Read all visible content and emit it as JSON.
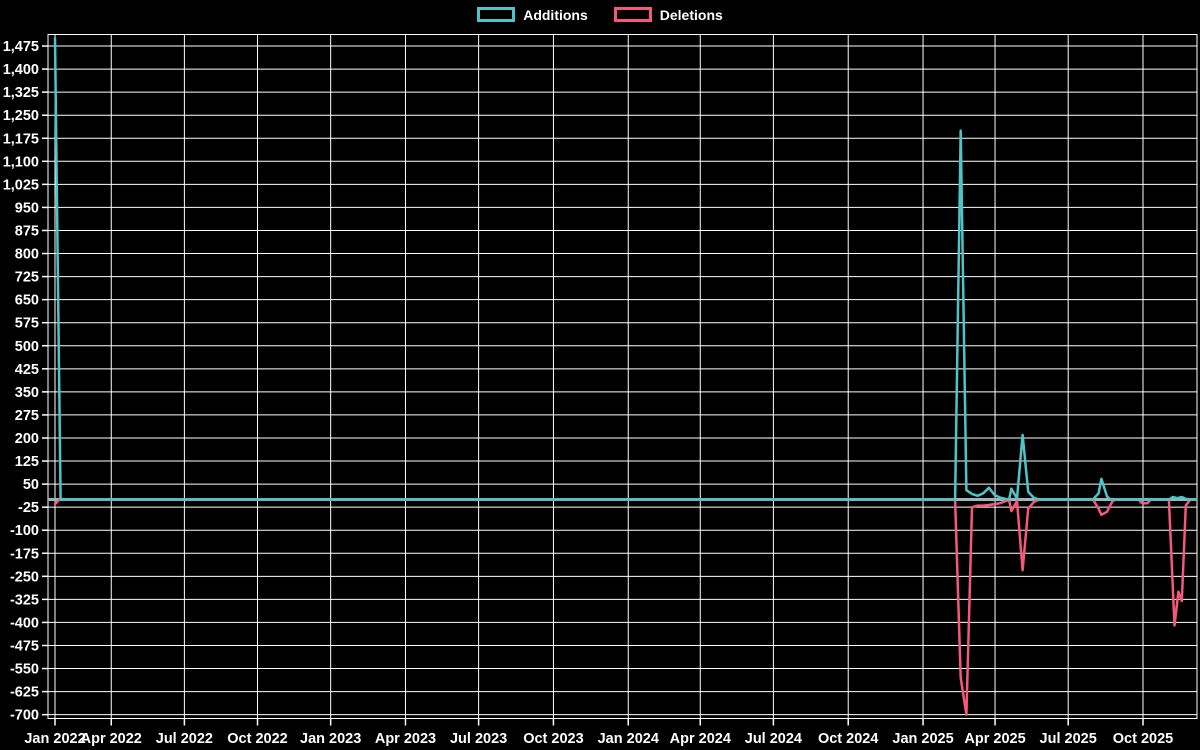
{
  "page": {
    "background": "#000000",
    "text_color": "#ffffff"
  },
  "legend": {
    "items": [
      {
        "label": "Additions",
        "color": "#4dc4c7"
      },
      {
        "label": "Deletions",
        "color": "#f4597b"
      }
    ]
  },
  "chart_data": {
    "type": "line",
    "title": "",
    "xlabel": "",
    "ylabel": "",
    "legend_position": "top-center",
    "grid": true,
    "grid_color": "#ffffff",
    "background_color": "#000000",
    "baseline_color": "#9db6bd",
    "x_axis": {
      "tick_labels": [
        "Jan 2022",
        "Apr 2022",
        "Jul 2022",
        "Oct 2022",
        "Jan 2023",
        "Apr 2023",
        "Jul 2023",
        "Oct 2023",
        "Jan 2024",
        "Apr 2024",
        "Jul 2024",
        "Oct 2024",
        "Jan 2025",
        "Apr 2025",
        "Jul 2025",
        "Oct 2025"
      ],
      "tick_weeks": [
        0,
        10,
        23,
        36,
        49,
        62.3,
        75.3,
        88.6,
        101.9,
        114.7,
        127.7,
        141,
        154.3,
        167.1,
        180.1,
        193.4
      ],
      "weeks_total": 202.9
    },
    "y_axis": {
      "tick_values": [
        1475,
        1400,
        1325,
        1250,
        1175,
        1100,
        1025,
        950,
        875,
        800,
        725,
        650,
        575,
        500,
        425,
        350,
        275,
        200,
        125,
        50,
        -25,
        -100,
        -175,
        -250,
        -325,
        -400,
        -475,
        -550,
        -625,
        -700
      ],
      "min": -712.5,
      "max": 1512.5,
      "tick_step": 75
    },
    "series": [
      {
        "name": "Additions",
        "color": "#4dc4c7",
        "points": [
          [
            0,
            1500
          ],
          [
            1,
            0
          ],
          [
            160,
            0
          ],
          [
            161,
            1200
          ],
          [
            162,
            30
          ],
          [
            163,
            18
          ],
          [
            164,
            12
          ],
          [
            165,
            20
          ],
          [
            166,
            38
          ],
          [
            167,
            15
          ],
          [
            168,
            6
          ],
          [
            169,
            2
          ],
          [
            169.6,
            0
          ],
          [
            170,
            35
          ],
          [
            171,
            3
          ],
          [
            172,
            210
          ],
          [
            173,
            25
          ],
          [
            174,
            5
          ],
          [
            175,
            0
          ],
          [
            184.5,
            0
          ],
          [
            185.5,
            20
          ],
          [
            186,
            67
          ],
          [
            187,
            10
          ],
          [
            187.6,
            0
          ],
          [
            198,
            0
          ],
          [
            198.7,
            8
          ],
          [
            199.5,
            4
          ],
          [
            200.3,
            8
          ],
          [
            201,
            2
          ],
          [
            202,
            0
          ],
          [
            202.9,
            0
          ]
        ]
      },
      {
        "name": "Deletions",
        "color": "#f4597b",
        "points": [
          [
            0,
            -15
          ],
          [
            0.8,
            0
          ],
          [
            160,
            0
          ],
          [
            161,
            -580
          ],
          [
            162,
            -700
          ],
          [
            163,
            -25
          ],
          [
            164,
            -20
          ],
          [
            165,
            -20
          ],
          [
            166,
            -18
          ],
          [
            167,
            -15
          ],
          [
            168,
            -12
          ],
          [
            169,
            -5
          ],
          [
            169.6,
            -2
          ],
          [
            170,
            -38
          ],
          [
            171,
            -5
          ],
          [
            172,
            -230
          ],
          [
            173,
            -30
          ],
          [
            174,
            -8
          ],
          [
            175,
            0
          ],
          [
            184.5,
            0
          ],
          [
            185.5,
            -30
          ],
          [
            186,
            -50
          ],
          [
            187,
            -40
          ],
          [
            188,
            -5
          ],
          [
            188.6,
            0
          ],
          [
            192.6,
            0
          ],
          [
            193.2,
            -12
          ],
          [
            194.2,
            -12
          ],
          [
            194.8,
            0
          ],
          [
            198,
            0
          ],
          [
            199,
            -410
          ],
          [
            199.7,
            -300
          ],
          [
            200.3,
            -330
          ],
          [
            201,
            -20
          ],
          [
            201.8,
            0
          ],
          [
            202.9,
            0
          ]
        ]
      }
    ]
  }
}
